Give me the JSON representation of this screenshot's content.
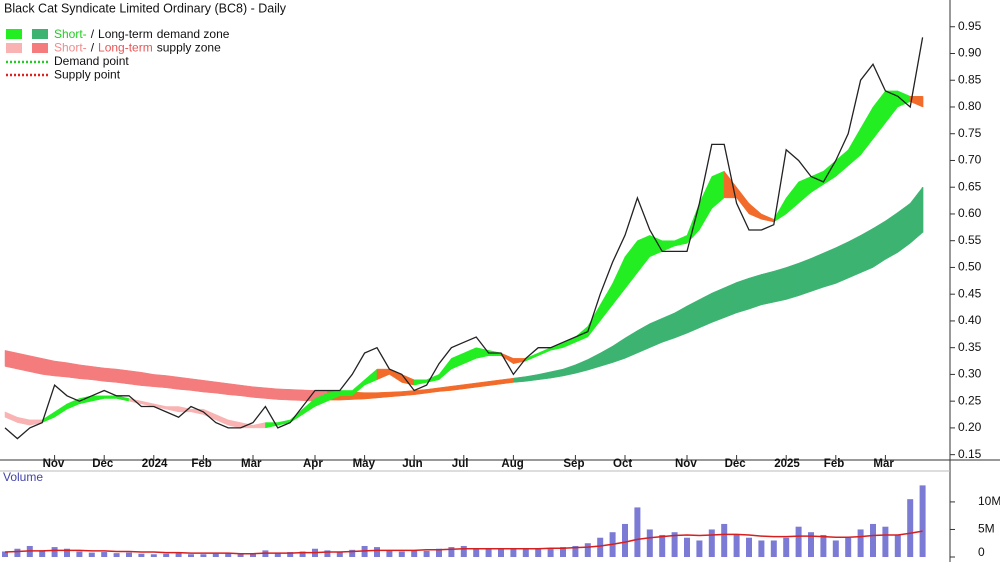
{
  "chart_data": {
    "type": "stock",
    "title": "Black Cat Syndicate Limited Ordinary (BC8) - Daily",
    "legend": [
      [
        "Short-",
        "/",
        "Long-term",
        "demand zone"
      ],
      [
        "Short-",
        "/",
        "Long-term",
        "supply zone"
      ],
      [
        "Demand point"
      ],
      [
        "Supply point"
      ]
    ],
    "categories": [
      null,
      null,
      null,
      null,
      "Nov",
      null,
      null,
      null,
      "Dec",
      null,
      null,
      null,
      "2024",
      null,
      null,
      null,
      "Feb",
      null,
      null,
      null,
      "Mar",
      null,
      null,
      null,
      null,
      "Apr",
      null,
      null,
      null,
      "May",
      null,
      null,
      null,
      "Jun",
      null,
      null,
      null,
      "Jul",
      null,
      null,
      null,
      "Aug",
      null,
      null,
      null,
      null,
      "Sep",
      null,
      null,
      null,
      "Oct",
      null,
      null,
      null,
      null,
      "Nov",
      null,
      null,
      null,
      "Dec",
      null,
      null,
      null,
      "2025",
      null,
      null,
      null,
      "Feb",
      null,
      null,
      null,
      "Mar",
      null,
      null,
      null
    ],
    "close": {
      "color": "#222222",
      "values": [
        0.2,
        0.18,
        0.2,
        0.21,
        0.28,
        0.26,
        0.25,
        0.26,
        0.27,
        0.26,
        0.26,
        0.24,
        0.24,
        0.23,
        0.22,
        0.24,
        0.23,
        0.21,
        0.2,
        0.2,
        0.21,
        0.24,
        0.2,
        0.21,
        0.24,
        0.27,
        0.27,
        0.27,
        0.3,
        0.34,
        0.35,
        0.31,
        0.3,
        0.27,
        0.28,
        0.32,
        0.35,
        0.36,
        0.37,
        0.34,
        0.34,
        0.3,
        0.33,
        0.35,
        0.35,
        0.36,
        0.37,
        0.38,
        0.45,
        0.51,
        0.56,
        0.63,
        0.57,
        0.53,
        0.53,
        0.53,
        0.62,
        0.73,
        0.73,
        0.62,
        0.57,
        0.57,
        0.58,
        0.72,
        0.7,
        0.67,
        0.66,
        0.7,
        0.75,
        0.85,
        0.88,
        0.83,
        0.82,
        0.8,
        0.93
      ]
    },
    "zones": [
      {
        "upper": [
          0.345,
          0.34,
          0.335,
          0.33,
          0.325,
          0.322,
          0.318,
          0.315,
          0.312,
          0.31,
          0.307,
          0.304,
          0.3,
          0.298,
          0.295,
          0.292,
          0.289,
          0.286,
          0.283,
          0.28,
          0.277,
          0.275,
          0.273,
          0.272,
          0.271,
          0.27,
          0.27,
          0.268,
          0.267,
          0.266,
          0.266,
          0.267,
          0.268,
          0.27,
          0.272,
          0.275,
          0.278,
          0.281,
          0.284,
          0.287,
          0.29,
          0.293,
          0.296,
          0.3,
          0.305,
          0.31,
          0.318,
          0.328,
          0.34,
          0.353,
          0.368,
          0.382,
          0.395,
          0.405,
          0.415,
          0.428,
          0.44,
          0.452,
          0.462,
          0.472,
          0.48,
          0.487,
          0.493,
          0.5,
          0.508,
          0.517,
          0.527,
          0.537,
          0.548,
          0.56,
          0.573,
          0.587,
          0.603,
          0.62,
          0.65
        ],
        "lower": [
          0.315,
          0.31,
          0.305,
          0.3,
          0.297,
          0.295,
          0.292,
          0.29,
          0.287,
          0.285,
          0.282,
          0.279,
          0.277,
          0.275,
          0.272,
          0.27,
          0.267,
          0.265,
          0.262,
          0.26,
          0.257,
          0.255,
          0.253,
          0.252,
          0.251,
          0.25,
          0.252,
          0.252,
          0.253,
          0.254,
          0.256,
          0.258,
          0.26,
          0.262,
          0.265,
          0.268,
          0.27,
          0.273,
          0.276,
          0.279,
          0.282,
          0.285,
          0.287,
          0.29,
          0.293,
          0.297,
          0.302,
          0.308,
          0.315,
          0.322,
          0.33,
          0.34,
          0.35,
          0.36,
          0.368,
          0.377,
          0.387,
          0.397,
          0.406,
          0.415,
          0.422,
          0.43,
          0.435,
          0.44,
          0.447,
          0.455,
          0.463,
          0.47,
          0.48,
          0.49,
          0.5,
          0.515,
          0.528,
          0.545,
          0.565
        ],
        "colors": [
          "#f47c7c",
          "#f47c7c",
          "#f47c7c",
          "#f47c7c",
          "#f47c7c",
          "#f47c7c",
          "#f47c7c",
          "#f47c7c",
          "#f47c7c",
          "#f47c7c",
          "#f47c7c",
          "#f47c7c",
          "#f47c7c",
          "#f47c7c",
          "#f47c7c",
          "#f47c7c",
          "#f47c7c",
          "#f47c7c",
          "#f47c7c",
          "#f47c7c",
          "#f47c7c",
          "#f47c7c",
          "#f47c7c",
          "#f47c7c",
          "#f47c7c",
          "#f47c7c",
          "#f26b2a",
          "#f26b2a",
          "#f26b2a",
          "#f26b2a",
          "#f26b2a",
          "#f26b2a",
          "#f26b2a",
          "#f26b2a",
          "#f26b2a",
          "#f26b2a",
          "#f26b2a",
          "#f26b2a",
          "#f26b2a",
          "#f26b2a",
          "#f26b2a",
          "#3cb371",
          "#3cb371",
          "#3cb371",
          "#3cb371",
          "#3cb371",
          "#3cb371",
          "#3cb371",
          "#3cb371",
          "#3cb371",
          "#3cb371",
          "#3cb371",
          "#3cb371",
          "#3cb371",
          "#3cb371",
          "#3cb371",
          "#3cb371",
          "#3cb371",
          "#3cb371",
          "#3cb371",
          "#3cb371",
          "#3cb371",
          "#3cb371",
          "#3cb371",
          "#3cb371",
          "#3cb371",
          "#3cb371",
          "#3cb371",
          "#3cb371",
          "#3cb371",
          "#3cb371",
          "#3cb371",
          "#3cb371",
          "#3cb371",
          "#3cb371"
        ]
      },
      {
        "upper": [
          0.23,
          0.22,
          0.215,
          0.215,
          0.23,
          0.245,
          0.255,
          0.26,
          0.26,
          0.26,
          0.255,
          0.25,
          0.245,
          0.24,
          0.24,
          0.235,
          0.235,
          0.225,
          0.215,
          0.21,
          0.205,
          0.21,
          0.21,
          0.215,
          0.235,
          0.255,
          0.265,
          0.27,
          0.27,
          0.29,
          0.31,
          0.31,
          0.3,
          0.29,
          0.29,
          0.3,
          0.33,
          0.34,
          0.35,
          0.345,
          0.34,
          0.33,
          0.33,
          0.34,
          0.35,
          0.36,
          0.37,
          0.39,
          0.43,
          0.47,
          0.52,
          0.55,
          0.56,
          0.55,
          0.55,
          0.56,
          0.62,
          0.67,
          0.68,
          0.65,
          0.62,
          0.6,
          0.59,
          0.63,
          0.66,
          0.67,
          0.68,
          0.7,
          0.72,
          0.76,
          0.8,
          0.83,
          0.83,
          0.82,
          0.82
        ],
        "lower": [
          0.22,
          0.21,
          0.205,
          0.21,
          0.22,
          0.235,
          0.245,
          0.25,
          0.255,
          0.255,
          0.25,
          0.245,
          0.24,
          0.235,
          0.23,
          0.23,
          0.225,
          0.215,
          0.205,
          0.2,
          0.2,
          0.2,
          0.205,
          0.21,
          0.225,
          0.24,
          0.25,
          0.26,
          0.26,
          0.28,
          0.29,
          0.3,
          0.285,
          0.28,
          0.285,
          0.29,
          0.31,
          0.32,
          0.33,
          0.335,
          0.335,
          0.32,
          0.325,
          0.335,
          0.345,
          0.35,
          0.36,
          0.37,
          0.4,
          0.43,
          0.46,
          0.49,
          0.52,
          0.53,
          0.54,
          0.545,
          0.57,
          0.61,
          0.63,
          0.63,
          0.6,
          0.59,
          0.585,
          0.6,
          0.62,
          0.64,
          0.655,
          0.67,
          0.69,
          0.71,
          0.74,
          0.77,
          0.8,
          0.81,
          0.8
        ],
        "colors": [
          "#f9b3b3",
          "#f9b3b3",
          "#f9b3b3",
          "#22ee22",
          "#22ee22",
          "#22ee22",
          "#22ee22",
          "#22ee22",
          "#22ee22",
          "#22ee22",
          "#f9b3b3",
          "#f9b3b3",
          "#f9b3b3",
          "#f9b3b3",
          "#f9b3b3",
          "#f9b3b3",
          "#f9b3b3",
          "#f9b3b3",
          "#f9b3b3",
          "#f9b3b3",
          "#f9b3b3",
          "#22ee22",
          "#22ee22",
          "#22ee22",
          "#22ee22",
          "#22ee22",
          "#22ee22",
          "#22ee22",
          "#22ee22",
          "#22ee22",
          "#f26b2a",
          "#f26b2a",
          "#f26b2a",
          "#22ee22",
          "#22ee22",
          "#22ee22",
          "#22ee22",
          "#22ee22",
          "#22ee22",
          "#22ee22",
          "#f26b2a",
          "#f26b2a",
          "#22ee22",
          "#22ee22",
          "#22ee22",
          "#22ee22",
          "#22ee22",
          "#22ee22",
          "#22ee22",
          "#22ee22",
          "#22ee22",
          "#22ee22",
          "#22ee22",
          "#22ee22",
          "#22ee22",
          "#22ee22",
          "#22ee22",
          "#22ee22",
          "#f26b2a",
          "#f26b2a",
          "#f26b2a",
          "#f26b2a",
          "#22ee22",
          "#22ee22",
          "#22ee22",
          "#22ee22",
          "#22ee22",
          "#22ee22",
          "#22ee22",
          "#22ee22",
          "#22ee22",
          "#22ee22",
          "#22ee22",
          "#f26b2a",
          "#f26b2a"
        ]
      }
    ],
    "ylim": [
      0.14,
      1.0
    ],
    "yticks": [
      0.15,
      {
        "value": 0.2,
        "label": "0.20"
      },
      0.25,
      {
        "value": 0.3,
        "label": "0.30"
      },
      0.35,
      {
        "value": 0.4,
        "label": "0.40"
      },
      0.45,
      {
        "value": 0.5,
        "label": "0.50"
      },
      0.55,
      {
        "value": 0.6,
        "label": "0.60"
      },
      0.65,
      {
        "value": 0.7,
        "label": "0.70"
      },
      0.75,
      {
        "value": 0.8,
        "label": "0.80"
      },
      0.85,
      {
        "value": 0.9,
        "label": "0.90"
      },
      0.95
    ],
    "volume": {
      "label": "Volume",
      "color": "#7b7bd6",
      "values": [
        1.0,
        1.5,
        2.0,
        1.2,
        1.8,
        1.5,
        1.0,
        0.8,
        0.9,
        0.7,
        0.8,
        0.6,
        0.5,
        0.6,
        0.7,
        0.5,
        0.5,
        0.6,
        0.7,
        0.5,
        0.6,
        1.2,
        0.8,
        0.9,
        1.0,
        1.5,
        1.2,
        1.0,
        1.3,
        2.0,
        1.8,
        1.2,
        1.0,
        1.2,
        1.1,
        1.5,
        1.8,
        2.0,
        1.6,
        1.5,
        1.4,
        1.6,
        1.4,
        1.5,
        1.6,
        1.8,
        2.0,
        2.5,
        3.5,
        4.5,
        6.0,
        9.0,
        5.0,
        4.0,
        4.5,
        3.5,
        3.0,
        5.0,
        6.0,
        4.0,
        3.5,
        3.0,
        3.0,
        3.5,
        5.5,
        4.5,
        4.0,
        3.0,
        3.5,
        5.0,
        6.0,
        5.5,
        4.0,
        10.5,
        13.0
      ],
      "average": {
        "color": "#d62020",
        "values": [
          0.9,
          1.0,
          1.1,
          1.1,
          1.2,
          1.2,
          1.2,
          1.1,
          1.1,
          1.0,
          1.0,
          0.9,
          0.9,
          0.8,
          0.8,
          0.7,
          0.7,
          0.7,
          0.7,
          0.6,
          0.6,
          0.7,
          0.7,
          0.7,
          0.8,
          0.8,
          0.9,
          0.9,
          1.0,
          1.1,
          1.2,
          1.2,
          1.2,
          1.2,
          1.3,
          1.3,
          1.4,
          1.5,
          1.5,
          1.5,
          1.5,
          1.5,
          1.5,
          1.5,
          1.6,
          1.6,
          1.7,
          1.8,
          2.0,
          2.3,
          2.7,
          3.2,
          3.5,
          3.7,
          3.9,
          4.0,
          3.9,
          4.0,
          4.1,
          4.1,
          4.0,
          3.8,
          3.7,
          3.7,
          3.8,
          3.8,
          3.7,
          3.6,
          3.6,
          3.7,
          3.9,
          4.0,
          4.0,
          4.3,
          4.7
        ]
      },
      "ylim": [
        0,
        16.7
      ],
      "yticks": [
        0,
        {
          "value": 5,
          "label": "5M"
        },
        {
          "value": 10,
          "label": "10M"
        }
      ]
    }
  }
}
